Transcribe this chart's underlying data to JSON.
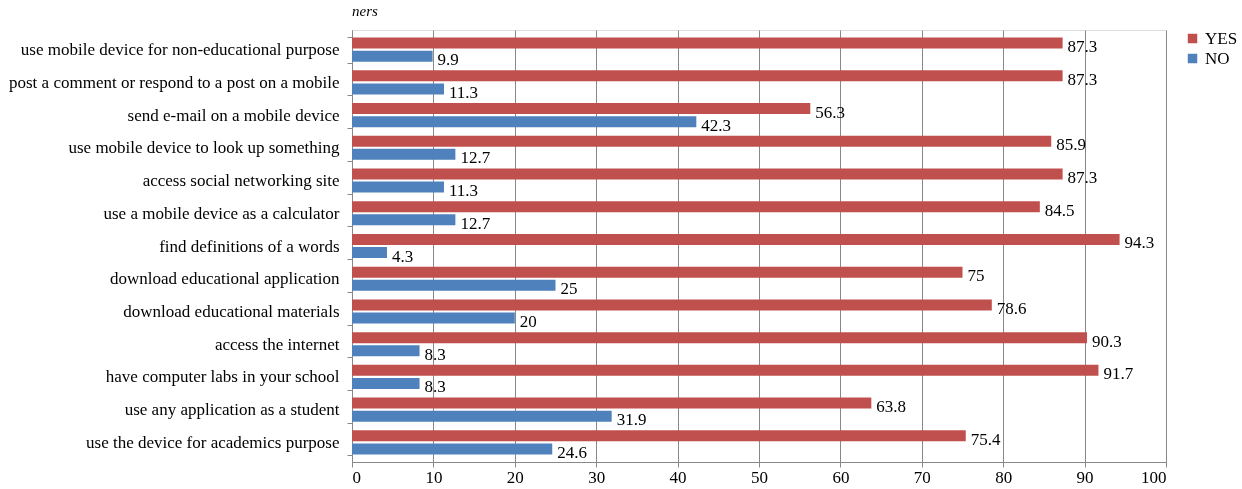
{
  "chart_data": {
    "type": "bar",
    "orientation": "horizontal",
    "categories": [
      "use mobile device  for non-educational  purpose",
      "post a comment  or respond to a post on a mobile",
      "send e-mail  on a mobile device",
      "use mobile device  to look up something",
      "access  social  networking site",
      "use a mobile  device  as a calculator",
      "find definitions  of a words",
      "download educational  application",
      "download educational  materials",
      "access the internet",
      "have computer labs in your school",
      "use any application   as a student",
      "use the  device  for academics  purpose"
    ],
    "series": [
      {
        "name": "YES",
        "color": "#c0504d",
        "values": [
          87.3,
          87.3,
          56.3,
          85.9,
          87.3,
          84.5,
          94.3,
          75,
          78.6,
          90.3,
          91.7,
          63.8,
          75.4
        ]
      },
      {
        "name": "NO",
        "color": "#4f81bd",
        "values": [
          9.9,
          11.3,
          42.3,
          12.7,
          11.3,
          12.7,
          4.3,
          25,
          20,
          8.3,
          8.3,
          31.9,
          24.6
        ]
      }
    ],
    "xlim": [
      0,
      100
    ],
    "xticks": [
      0,
      10,
      20,
      30,
      40,
      50,
      60,
      70,
      80,
      90,
      100
    ],
    "grid": "x",
    "legend": "right",
    "data_labels": true,
    "annotations": [
      "ners"
    ]
  }
}
